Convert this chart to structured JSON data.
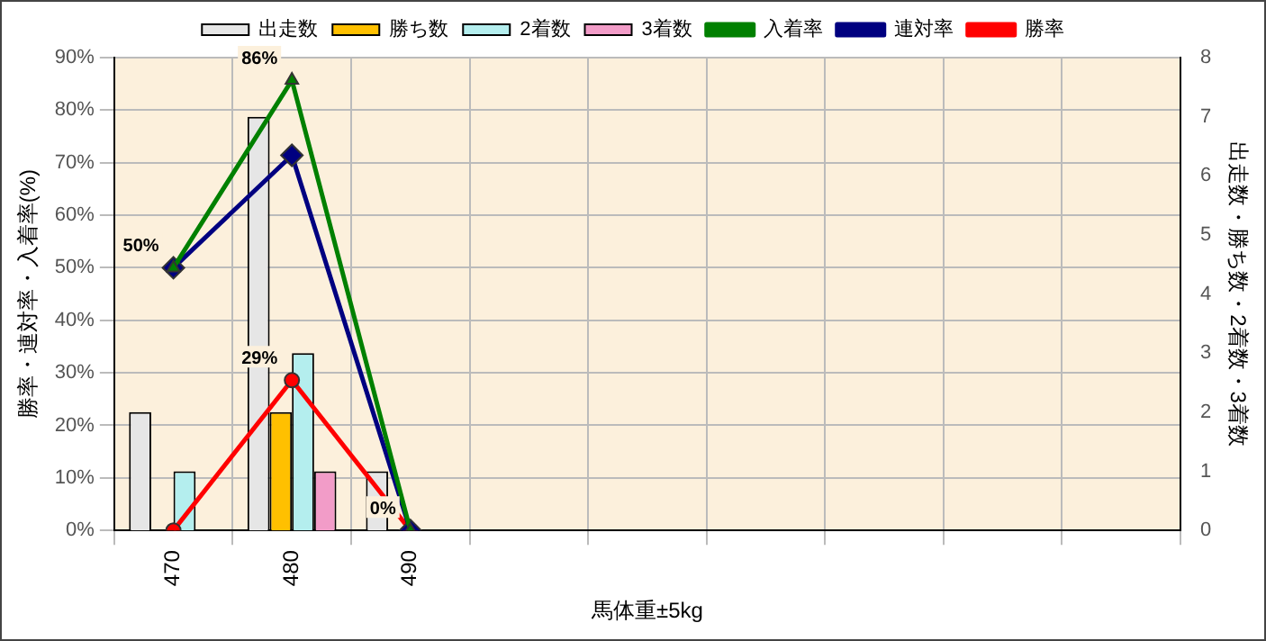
{
  "chart_data": {
    "type": "bar",
    "xlabel": "馬体重±5kg",
    "ylabel": "勝率・連対率・入着率(%)",
    "y2label": "出走数・勝ち数・2着数・3着数",
    "categories": [
      "470",
      "480",
      "490",
      null,
      null,
      null,
      null,
      null,
      null
    ],
    "series": [
      {
        "name": "出走数",
        "axis": "y2",
        "color": "#e6e6e6",
        "values": [
          2,
          7,
          1,
          null,
          null,
          null,
          null,
          null,
          null
        ]
      },
      {
        "name": "勝ち数",
        "axis": "y2",
        "color": "#ffc000",
        "values": [
          0,
          2,
          0,
          null,
          null,
          null,
          null,
          null,
          null
        ]
      },
      {
        "name": "2着数",
        "axis": "y2",
        "color": "#b4eeee",
        "values": [
          1,
          3,
          0,
          null,
          null,
          null,
          null,
          null,
          null
        ]
      },
      {
        "name": "3着数",
        "axis": "y2",
        "color": "#f29cc8",
        "values": [
          0,
          1,
          0,
          null,
          null,
          null,
          null,
          null,
          null
        ]
      },
      {
        "name": "入着率",
        "type": "line",
        "marker": "triangle",
        "color": "#008000",
        "values": [
          50,
          85.7,
          0,
          null,
          null,
          null,
          null,
          null,
          null
        ],
        "value_labels": [
          "50%",
          "86%",
          "0%",
          null,
          null,
          null,
          null,
          null,
          null
        ]
      },
      {
        "name": "連対率",
        "type": "line",
        "marker": "diamond",
        "color": "#000080",
        "values": [
          50,
          71.4,
          0,
          null,
          null,
          null,
          null,
          null,
          null
        ]
      },
      {
        "name": "勝率",
        "type": "line",
        "marker": "circle",
        "color": "#ff0000",
        "values": [
          0,
          28.6,
          0,
          null,
          null,
          null,
          null,
          null,
          null
        ],
        "value_labels": [
          null,
          "29%",
          null,
          null,
          null,
          null,
          null,
          null,
          null
        ]
      }
    ],
    "ylim": [
      0,
      90
    ],
    "yticks": [
      {
        "value": 0,
        "label": "0%"
      },
      {
        "value": 10,
        "label": "10%"
      },
      {
        "value": 20,
        "label": "20%"
      },
      {
        "value": 30,
        "label": "30%"
      },
      {
        "value": 40,
        "label": "40%"
      },
      {
        "value": 50,
        "label": "50%"
      },
      {
        "value": 60,
        "label": "60%"
      },
      {
        "value": 70,
        "label": "70%"
      },
      {
        "value": 80,
        "label": "80%"
      },
      {
        "value": 90,
        "label": "90%"
      }
    ],
    "y2lim": [
      0,
      8
    ],
    "y2ticks": [
      0,
      1,
      2,
      3,
      4,
      5,
      6,
      7,
      8
    ],
    "grid": true,
    "legend": "top",
    "line_style": "solid"
  }
}
